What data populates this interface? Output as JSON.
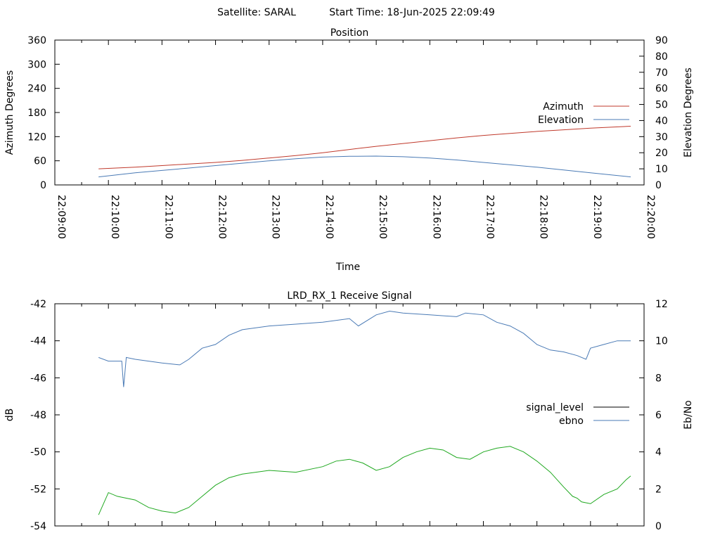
{
  "header": {
    "satellite_label": "Satellite: SARAL",
    "start_time_label": "Start Time: 18-Jun-2025 22:09:49"
  },
  "chart_data": [
    {
      "type": "line",
      "title": "Position",
      "xlabel": "Time",
      "ylabel": "Azimuth Degrees",
      "y2label": "Elevation Degrees",
      "xlim": [
        "22:09:00",
        "22:20:00"
      ],
      "ylim": [
        0,
        360
      ],
      "y2lim": [
        0,
        90
      ],
      "x_ticks": [
        "22:09:00",
        "22:10:00",
        "22:11:00",
        "22:12:00",
        "22:13:00",
        "22:14:00",
        "22:15:00",
        "22:16:00",
        "22:17:00",
        "22:18:00",
        "22:19:00",
        "22:20:00"
      ],
      "y_ticks": [
        0,
        60,
        120,
        180,
        240,
        300,
        360
      ],
      "y2_ticks": [
        0,
        10,
        20,
        30,
        40,
        50,
        60,
        70,
        80,
        90
      ],
      "grid": false,
      "legend_position": "right",
      "series": [
        {
          "name": "Azimuth",
          "axis": "y",
          "color": "#c0392b",
          "x": [
            "22:09:49",
            "22:10:30",
            "22:11:00",
            "22:11:30",
            "22:12:00",
            "22:12:30",
            "22:13:00",
            "22:13:30",
            "22:14:00",
            "22:14:30",
            "22:15:00",
            "22:15:30",
            "22:16:00",
            "22:16:30",
            "22:17:00",
            "22:17:30",
            "22:18:00",
            "22:18:30",
            "22:19:00",
            "22:19:45"
          ],
          "values": [
            40,
            44,
            48,
            52,
            56,
            61,
            67,
            73,
            80,
            88,
            96,
            103,
            110,
            117,
            123,
            128,
            133,
            137,
            141,
            146
          ]
        },
        {
          "name": "Elevation",
          "axis": "y2",
          "color": "#4a7ab5",
          "x": [
            "22:09:49",
            "22:10:30",
            "22:11:00",
            "22:11:30",
            "22:12:00",
            "22:12:30",
            "22:13:00",
            "22:13:30",
            "22:14:00",
            "22:14:30",
            "22:15:00",
            "22:15:30",
            "22:16:00",
            "22:16:30",
            "22:17:00",
            "22:17:30",
            "22:18:00",
            "22:18:30",
            "22:19:00",
            "22:19:45"
          ],
          "values": [
            5,
            7.5,
            9,
            10.5,
            12,
            13.5,
            15,
            16.3,
            17.3,
            17.8,
            17.9,
            17.5,
            16.7,
            15.5,
            14,
            12.5,
            11,
            9.3,
            7.5,
            5
          ]
        }
      ]
    },
    {
      "type": "line",
      "title": "LRD_RX_1 Receive Signal",
      "ylabel": "dB",
      "y2label": "Eb/No",
      "xlim": [
        "22:09:00",
        "22:20:00"
      ],
      "ylim": [
        -54,
        -42
      ],
      "y2lim": [
        0,
        12
      ],
      "y_ticks": [
        -54,
        -52,
        -50,
        -48,
        -46,
        -44,
        -42
      ],
      "y2_ticks": [
        0,
        2,
        4,
        6,
        8,
        10,
        12
      ],
      "grid": false,
      "legend_position": "right",
      "series": [
        {
          "name": "signal_level",
          "axis": "y",
          "color": "#000000",
          "x": [],
          "values": []
        },
        {
          "name": "ebno",
          "axis": "y2",
          "color": "#4a7ab5",
          "x": [
            "22:09:49",
            "22:10:00",
            "22:10:15",
            "22:10:17",
            "22:10:20",
            "22:10:30",
            "22:11:00",
            "22:11:20",
            "22:11:30",
            "22:11:45",
            "22:12:00",
            "22:12:15",
            "22:12:30",
            "22:13:00",
            "22:13:30",
            "22:14:00",
            "22:14:30",
            "22:14:40",
            "22:15:00",
            "22:15:15",
            "22:15:30",
            "22:16:00",
            "22:16:30",
            "22:16:40",
            "22:17:00",
            "22:17:15",
            "22:17:30",
            "22:17:45",
            "22:18:00",
            "22:18:15",
            "22:18:30",
            "22:18:45",
            "22:18:55",
            "22:19:00",
            "22:19:15",
            "22:19:30",
            "22:19:45"
          ],
          "values": [
            9.1,
            8.9,
            8.9,
            7.5,
            9.1,
            9.0,
            8.8,
            8.7,
            9.0,
            9.6,
            9.8,
            10.3,
            10.6,
            10.8,
            10.9,
            11.0,
            11.2,
            10.8,
            11.4,
            11.6,
            11.5,
            11.4,
            11.3,
            11.5,
            11.4,
            11.0,
            10.8,
            10.4,
            9.8,
            9.5,
            9.4,
            9.2,
            9.0,
            9.6,
            9.8,
            10.0,
            10.0
          ]
        },
        {
          "name": "",
          "axis": "y",
          "color": "#1fa81f",
          "x": [
            "22:09:49",
            "22:10:00",
            "22:10:10",
            "22:10:20",
            "22:10:30",
            "22:10:45",
            "22:11:00",
            "22:11:15",
            "22:11:30",
            "22:11:45",
            "22:12:00",
            "22:12:15",
            "22:12:30",
            "22:13:00",
            "22:13:30",
            "22:14:00",
            "22:14:15",
            "22:14:30",
            "22:14:45",
            "22:15:00",
            "22:15:15",
            "22:15:30",
            "22:15:45",
            "22:16:00",
            "22:16:15",
            "22:16:30",
            "22:16:45",
            "22:17:00",
            "22:17:15",
            "22:17:30",
            "22:17:45",
            "22:18:00",
            "22:18:15",
            "22:18:30",
            "22:18:40",
            "22:18:45",
            "22:18:50",
            "22:19:00",
            "22:19:15",
            "22:19:30",
            "22:19:40",
            "22:19:45"
          ],
          "values": [
            -53.4,
            -52.2,
            -52.4,
            -52.5,
            -52.6,
            -53.0,
            -53.2,
            -53.3,
            -53.0,
            -52.4,
            -51.8,
            -51.4,
            -51.2,
            -51.0,
            -51.1,
            -50.8,
            -50.5,
            -50.4,
            -50.6,
            -51.0,
            -50.8,
            -50.3,
            -50.0,
            -49.8,
            -49.9,
            -50.3,
            -50.4,
            -50.0,
            -49.8,
            -49.7,
            -50.0,
            -50.5,
            -51.1,
            -51.9,
            -52.4,
            -52.5,
            -52.7,
            -52.8,
            -52.3,
            -52.0,
            -51.5,
            -51.3
          ]
        }
      ]
    }
  ]
}
